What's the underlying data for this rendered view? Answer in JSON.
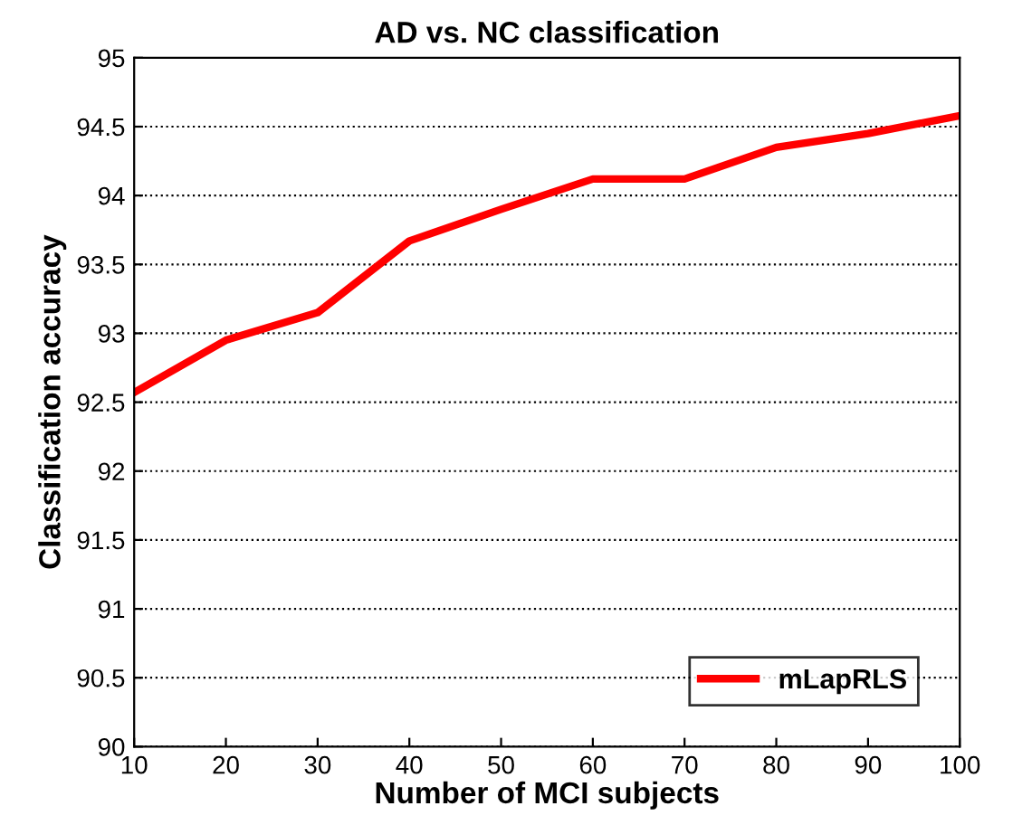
{
  "chart_data": {
    "type": "line",
    "title": "AD vs. NC classification",
    "xlabel": "Number of MCI subjects",
    "ylabel": "Classification accuracy",
    "x": [
      10,
      20,
      30,
      40,
      50,
      60,
      70,
      80,
      90,
      100
    ],
    "series": [
      {
        "name": "mLapRLS",
        "color": "#ff0000",
        "values": [
          92.57,
          92.95,
          93.15,
          93.67,
          93.9,
          94.12,
          94.12,
          94.35,
          94.45,
          94.58
        ]
      }
    ],
    "xlim": [
      10,
      100
    ],
    "xticks": [
      10,
      20,
      30,
      40,
      50,
      60,
      70,
      80,
      90,
      100
    ],
    "ylim": [
      90,
      95
    ],
    "yticks": [
      90,
      90.5,
      91,
      91.5,
      92,
      92.5,
      93,
      93.5,
      94,
      94.5,
      95
    ],
    "grid": "y",
    "legend": "bottom right",
    "line_style": "solid"
  }
}
